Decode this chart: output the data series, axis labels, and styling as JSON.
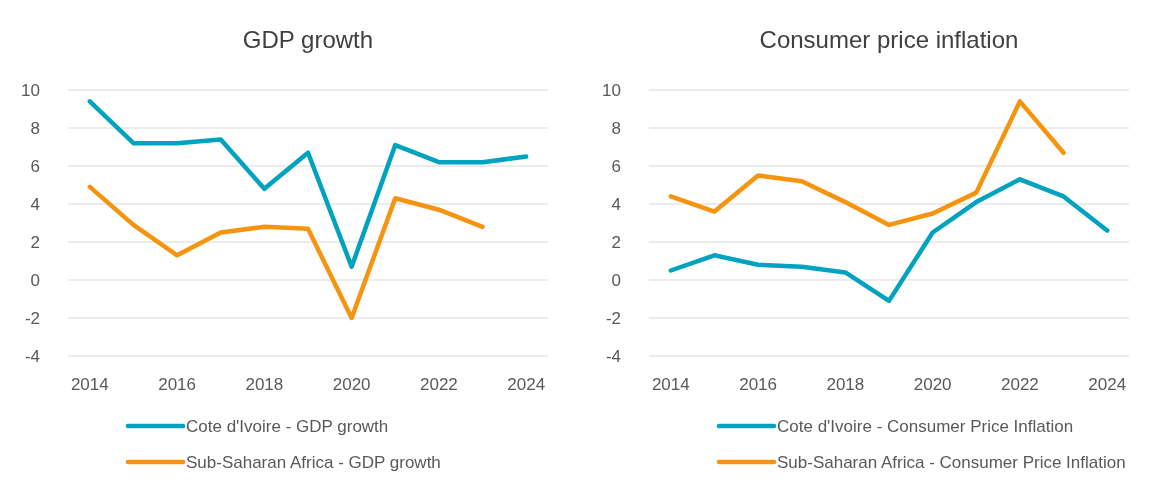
{
  "chart_data": [
    {
      "type": "line",
      "title": "GDP growth",
      "x": [
        2014,
        2015,
        2016,
        2017,
        2018,
        2019,
        2020,
        2021,
        2022,
        2023,
        2024
      ],
      "xlim": [
        2013.5,
        2024.5
      ],
      "xticks": [
        2014,
        2016,
        2018,
        2020,
        2022,
        2024
      ],
      "ylim": [
        -4,
        10
      ],
      "yticks": [
        -4,
        -2,
        0,
        2,
        4,
        6,
        8,
        10
      ],
      "grid": "y",
      "legend": "bottom",
      "series": [
        {
          "name": "Cote d'Ivoire - GDP growth",
          "color": "#00a3bf",
          "values": [
            9.4,
            7.2,
            7.2,
            7.4,
            4.8,
            6.7,
            0.7,
            7.1,
            6.2,
            6.2,
            6.5
          ]
        },
        {
          "name": "Sub-Saharan Africa - GDP growth",
          "color": "#f7940f",
          "values": [
            4.9,
            2.9,
            1.3,
            2.5,
            2.8,
            2.7,
            -2.0,
            4.3,
            3.7,
            2.8,
            null
          ]
        }
      ]
    },
    {
      "type": "line",
      "title": "Consumer price inflation",
      "x": [
        2014,
        2015,
        2016,
        2017,
        2018,
        2019,
        2020,
        2021,
        2022,
        2023,
        2024
      ],
      "xlim": [
        2013.5,
        2024.5
      ],
      "xticks": [
        2014,
        2016,
        2018,
        2020,
        2022,
        2024
      ],
      "ylim": [
        -4,
        10
      ],
      "yticks": [
        -4,
        -2,
        0,
        2,
        4,
        6,
        8,
        10
      ],
      "grid": "y",
      "legend": "bottom",
      "series": [
        {
          "name": "Cote d'Ivoire - Consumer Price Inflation",
          "color": "#00a3bf",
          "values": [
            0.5,
            1.3,
            0.8,
            0.7,
            0.4,
            -1.1,
            2.5,
            4.1,
            5.3,
            4.4,
            2.6
          ]
        },
        {
          "name": "Sub-Saharan Africa - Consumer Price Inflation",
          "color": "#f7940f",
          "values": [
            4.4,
            3.6,
            5.5,
            5.2,
            4.1,
            2.9,
            3.5,
            4.6,
            9.4,
            6.7,
            null
          ]
        }
      ]
    }
  ]
}
